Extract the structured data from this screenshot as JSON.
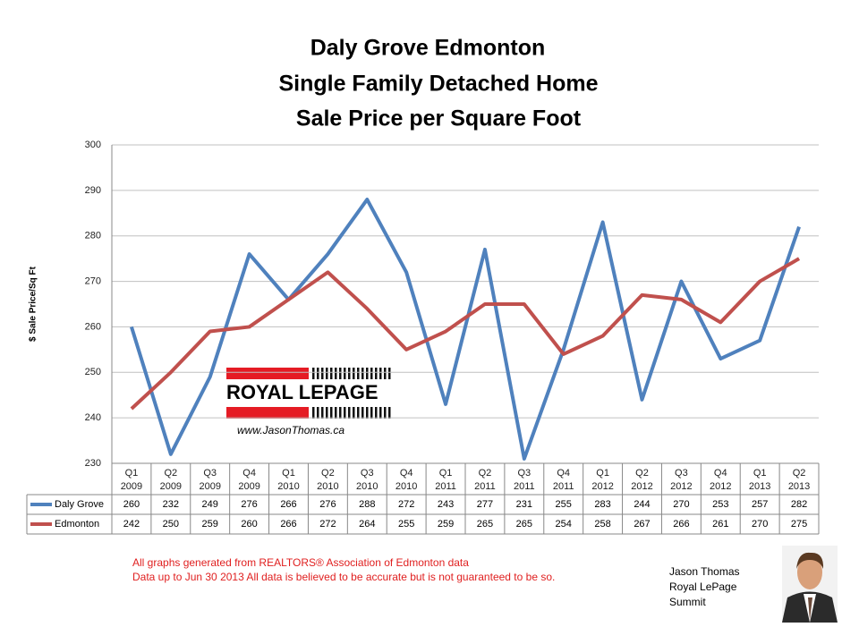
{
  "chart_data": {
    "type": "line",
    "title": [
      "Daly Grove Edmonton",
      "Single Family Detached Home",
      "Sale Price per Square Foot"
    ],
    "y_label": "$ Sale Price/Sq Ft",
    "categories": [
      [
        "Q1",
        "2009"
      ],
      [
        "Q2",
        "2009"
      ],
      [
        "Q3",
        "2009"
      ],
      [
        "Q4",
        "2009"
      ],
      [
        "Q1",
        "2010"
      ],
      [
        "Q2",
        "2010"
      ],
      [
        "Q3",
        "2010"
      ],
      [
        "Q4",
        "2010"
      ],
      [
        "Q1",
        "2011"
      ],
      [
        "Q2",
        "2011"
      ],
      [
        "Q3",
        "2011"
      ],
      [
        "Q4",
        "2011"
      ],
      [
        "Q1",
        "2012"
      ],
      [
        "Q2",
        "2012"
      ],
      [
        "Q3",
        "2012"
      ],
      [
        "Q4",
        "2012"
      ],
      [
        "Q1",
        "2013"
      ],
      [
        "Q2",
        "2013"
      ]
    ],
    "series": [
      {
        "name": "Daly Grove",
        "color": "#4f81bd",
        "values": [
          260,
          232,
          249,
          276,
          266,
          276,
          288,
          272,
          243,
          277,
          231,
          255,
          283,
          244,
          270,
          253,
          257,
          282
        ]
      },
      {
        "name": "Edmonton",
        "color": "#c0504d",
        "values": [
          242,
          250,
          259,
          260,
          266,
          272,
          264,
          255,
          259,
          265,
          265,
          254,
          258,
          267,
          266,
          261,
          270,
          275
        ]
      }
    ],
    "ylim": [
      230,
      300
    ],
    "yticks": [
      230,
      240,
      250,
      260,
      270,
      280,
      290,
      300
    ],
    "grid": true
  },
  "logo": {
    "name": "ROYAL LEPAGE",
    "url": "www.JasonThomas.ca"
  },
  "footer": [
    "All graphs generated from REALTORS® Association of Edmonton data",
    "Data up to  Jun 30 2013  All data is believed to be accurate but is not guaranteed to be so."
  ],
  "author": [
    "Jason Thomas",
    "Royal LePage",
    "Summit"
  ]
}
